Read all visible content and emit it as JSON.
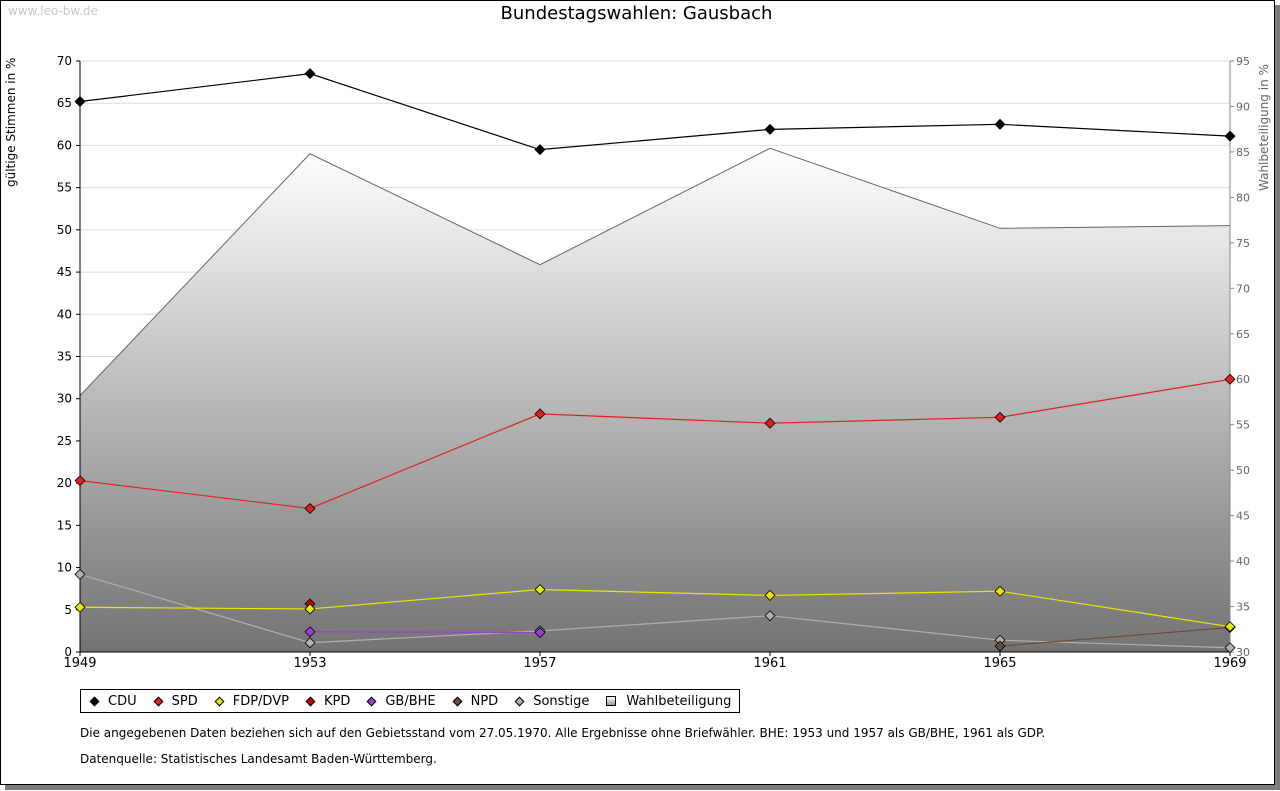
{
  "watermark": "www.leo-bw.de",
  "chart_data": {
    "type": "line",
    "title": "Bundestagswahlen: Gausbach",
    "xlabel": "",
    "ylabel": "gültige Stimmen in %",
    "ylabel_right": "Wahlbeteiligung in %",
    "x": [
      "1949",
      "1953",
      "1957",
      "1961",
      "1965",
      "1969"
    ],
    "ylim": [
      0,
      70
    ],
    "y_ticks": [
      0,
      5,
      10,
      15,
      20,
      25,
      30,
      35,
      40,
      45,
      50,
      55,
      60,
      65,
      70
    ],
    "ylim_right": [
      30,
      95
    ],
    "y_ticks_right": [
      30,
      35,
      40,
      45,
      50,
      55,
      60,
      65,
      70,
      75,
      80,
      85,
      90,
      95
    ],
    "series": [
      {
        "name": "CDU",
        "color": "#000000",
        "values": [
          65.2,
          68.5,
          59.5,
          61.9,
          62.5,
          61.1
        ]
      },
      {
        "name": "SPD",
        "color": "#e02020",
        "values": [
          20.3,
          17.0,
          28.2,
          27.1,
          27.8,
          32.3
        ]
      },
      {
        "name": "FDP/DVP",
        "color": "#e8e800",
        "values": [
          5.3,
          5.1,
          7.4,
          6.7,
          7.2,
          3.0
        ]
      },
      {
        "name": "KPD",
        "color": "#c00000",
        "values": [
          null,
          5.7,
          null,
          null,
          null,
          null
        ]
      },
      {
        "name": "GB/BHE",
        "color": "#9b3fd0",
        "values": [
          null,
          2.4,
          2.3,
          null,
          null,
          null
        ]
      },
      {
        "name": "NPD",
        "color": "#6b4a3a",
        "values": [
          null,
          null,
          null,
          null,
          0.7,
          2.9
        ]
      },
      {
        "name": "Sonstige",
        "color": "#b0b0b0",
        "values": [
          9.2,
          1.1,
          2.5,
          4.3,
          1.4,
          0.5
        ]
      }
    ],
    "turnout": {
      "name": "Wahlbeteiligung",
      "axis": "right",
      "values": [
        58.2,
        84.8,
        72.6,
        85.4,
        76.6,
        76.9
      ]
    }
  },
  "notes": {
    "line1": "Die angegebenen Daten beziehen sich auf den Gebietsstand vom 27.05.1970. Alle Ergebnisse ohne Briefwähler. BHE: 1953 und 1957 als GB/BHE, 1961 als GDP.",
    "line2": "Datenquelle: Statistisches Landesamt Baden-Württemberg."
  }
}
